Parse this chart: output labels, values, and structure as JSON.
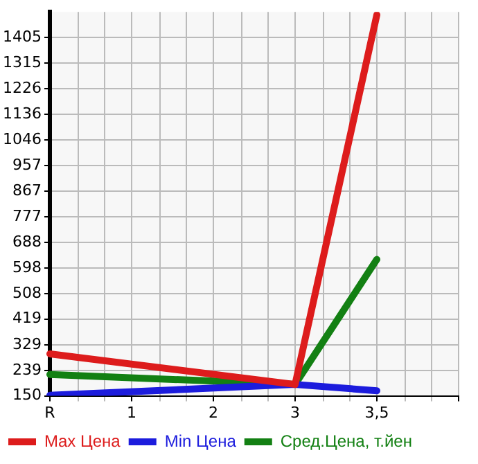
{
  "chart_data": {
    "type": "line",
    "categories": [
      "R",
      "1",
      "2",
      "3",
      "3,5",
      null
    ],
    "series": [
      {
        "name": "Max Цена",
        "color": "#dd1c1c",
        "values": [
          297,
          null,
          null,
          190,
          1485,
          null
        ]
      },
      {
        "name": "Min Цена",
        "color": "#1c1cdd",
        "values": [
          152,
          null,
          null,
          190,
          168,
          null
        ]
      },
      {
        "name": "Сред.Цена, т.йен",
        "color": "#138013",
        "values": [
          225,
          null,
          null,
          190,
          628,
          null
        ]
      }
    ],
    "ylim": [
      150,
      1495
    ],
    "yticks": [
      150,
      239,
      329,
      419,
      508,
      598,
      688,
      777,
      867,
      957,
      1046,
      1136,
      1226,
      1315,
      1405
    ],
    "grid": true,
    "legend": "bottom",
    "marker": "none",
    "line_style": "solid"
  }
}
